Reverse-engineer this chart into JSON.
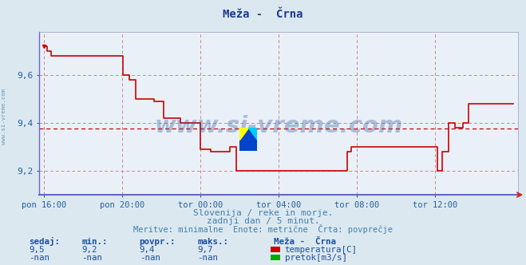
{
  "title": "Meža -  Črna",
  "background_color": "#dce8f0",
  "plot_bg_color": "#eaf0f8",
  "grid_color": "#cc8888",
  "x_labels": [
    "pon 16:00",
    "pon 20:00",
    "tor 00:00",
    "tor 04:00",
    "tor 08:00",
    "tor 12:00"
  ],
  "x_ticks_norm": [
    0.0,
    0.1667,
    0.3333,
    0.5,
    0.6667,
    0.8333
  ],
  "ylim": [
    9.1,
    9.78
  ],
  "yticks": [
    9.2,
    9.4,
    9.6
  ],
  "avg_line": 9.375,
  "line_color": "#cc0000",
  "line_width": 1.2,
  "watermark": "www.si-vreme.com",
  "watermark_color": "#3060a0",
  "watermark_alpha": 0.35,
  "left_label": "www.si-vreme.com",
  "left_label_color": "#5080b0",
  "subtitle1": "Slovenija / reke in morje.",
  "subtitle2": "zadnji dan / 5 minut.",
  "subtitle3": "Meritve: minimalne  Enote: metrične  Črta: povprečje",
  "subtitle_color": "#4080b0",
  "legend_title": "Meža -  Črna",
  "legend_color1": "#cc0000",
  "legend_label1": "temperatura[C]",
  "legend_color2": "#00aa00",
  "legend_label2": "pretok[m3/s]",
  "table_headers": [
    "sedaj:",
    "min.:",
    "povpr.:",
    "maks.:"
  ],
  "table_row1": [
    "9,5",
    "9,2",
    "9,4",
    "9,7"
  ],
  "table_row2": [
    "-nan",
    "-nan",
    "-nan",
    "-nan"
  ],
  "table_color": "#1a50a0",
  "segment_x": [
    0.0,
    0.006,
    0.006,
    0.015,
    0.015,
    0.168,
    0.168,
    0.182,
    0.182,
    0.195,
    0.195,
    0.235,
    0.235,
    0.255,
    0.255,
    0.29,
    0.29,
    0.333,
    0.333,
    0.355,
    0.355,
    0.395,
    0.395,
    0.41,
    0.41,
    0.645,
    0.645,
    0.655,
    0.655,
    0.668,
    0.668,
    0.838,
    0.838,
    0.848,
    0.848,
    0.862,
    0.862,
    0.875,
    0.875,
    0.892,
    0.892,
    0.905,
    0.905,
    1.0
  ],
  "segment_y": [
    9.72,
    9.72,
    9.7,
    9.7,
    9.68,
    9.68,
    9.6,
    9.6,
    9.58,
    9.58,
    9.5,
    9.5,
    9.49,
    9.49,
    9.42,
    9.42,
    9.4,
    9.4,
    9.29,
    9.29,
    9.28,
    9.28,
    9.3,
    9.3,
    9.2,
    9.2,
    9.28,
    9.28,
    9.3,
    9.3,
    9.3,
    9.3,
    9.2,
    9.2,
    9.28,
    9.28,
    9.4,
    9.4,
    9.38,
    9.38,
    9.4,
    9.4,
    9.48,
    9.48
  ]
}
